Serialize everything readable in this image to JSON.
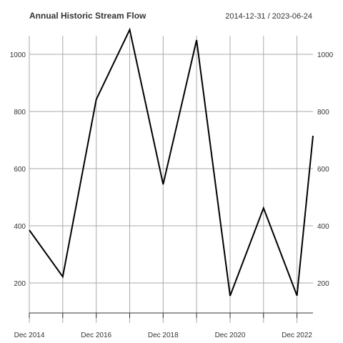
{
  "chart_data": {
    "type": "line",
    "title": "Annual Historic Stream Flow",
    "date_range": "2014-12-31 / 2023-06-24",
    "x": [
      "2014-12-31",
      "2015-12-31",
      "2016-12-31",
      "2017-12-31",
      "2018-12-31",
      "2019-12-31",
      "2020-12-31",
      "2021-12-31",
      "2022-12-31",
      "2023-06-24"
    ],
    "series": [
      {
        "values": [
          385,
          222,
          842,
          1086,
          545,
          1050,
          155,
          462,
          156,
          715
        ]
      }
    ],
    "ylim": [
      130,
      1090
    ],
    "y_ticks": [
      200,
      400,
      600,
      800,
      1000
    ],
    "x_ticks": [
      {
        "date": "2014-12-31",
        "label": "Dec 2014"
      },
      {
        "date": "2015-12-31",
        "label": ""
      },
      {
        "date": "2016-12-31",
        "label": "Dec 2016"
      },
      {
        "date": "2017-12-31",
        "label": ""
      },
      {
        "date": "2018-12-31",
        "label": "Dec 2018"
      },
      {
        "date": "2019-12-31",
        "label": ""
      },
      {
        "date": "2020-12-31",
        "label": "Dec 2020"
      },
      {
        "date": "2021-12-31",
        "label": ""
      },
      {
        "date": "2022-12-31",
        "label": "Dec 2022"
      }
    ],
    "grid": true,
    "right_axis": true,
    "colors": {
      "line": "#000000",
      "grid": "#aaaaaa",
      "text": "#333333"
    }
  }
}
